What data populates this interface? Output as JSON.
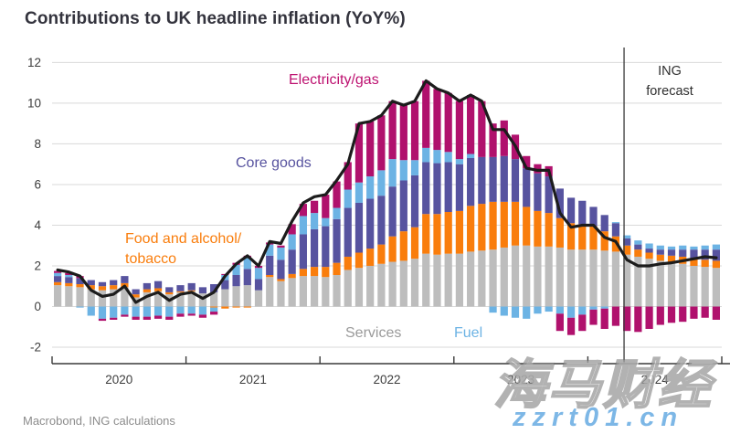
{
  "title": "Contributions to UK headline inflation (YoY%)",
  "source_note": "Macrobond, ING calculations",
  "forecast": {
    "line1": "ING",
    "line2": "forecast"
  },
  "watermark": {
    "text_cjk": "海马财经",
    "text_url": "zzrt01.cn"
  },
  "colors": {
    "services": "#bdbdbd",
    "food_alcohol_tobacco": "#f97d0c",
    "core_goods": "#57539f",
    "fuel": "#6cb3e4",
    "electricity_gas": "#b0116d",
    "headline_line": "#1c1c1c",
    "grid": "#d9d9d9",
    "axis": "#3a3a3a"
  },
  "chart_data": {
    "type": "bar",
    "subtype": "stacked-monthly-bars-with-line",
    "title": "Contributions to UK headline inflation (YoY%)",
    "x_tick_labels": [
      "2020",
      "2021",
      "2022",
      "2023",
      "2024"
    ],
    "months_span": "2020-01 to 2024-12",
    "ylim": [
      -2,
      12
    ],
    "yticks": [
      12,
      10,
      8,
      6,
      4,
      2,
      0,
      -2
    ],
    "grid": true,
    "legend_position": "in-plot annotations",
    "forecast_start_index": 51,
    "series": [
      {
        "name": "Services",
        "color": "#bdbdbd",
        "values": [
          1.05,
          1.0,
          0.95,
          0.85,
          0.8,
          0.85,
          0.95,
          0.45,
          0.7,
          0.75,
          0.6,
          0.7,
          0.75,
          0.65,
          0.7,
          0.85,
          1.0,
          1.05,
          0.8,
          1.45,
          1.25,
          1.4,
          1.5,
          1.5,
          1.45,
          1.55,
          1.8,
          1.9,
          2.0,
          2.1,
          2.2,
          2.25,
          2.35,
          2.6,
          2.55,
          2.6,
          2.6,
          2.7,
          2.75,
          2.8,
          2.9,
          3.0,
          3.0,
          2.95,
          2.95,
          2.9,
          2.8,
          2.8,
          2.8,
          2.75,
          2.7,
          2.55,
          2.45,
          2.35,
          2.25,
          2.2,
          2.1,
          2.0,
          1.95,
          1.9
        ]
      },
      {
        "name": "Food and alcohol/tobacco",
        "color": "#f97d0c",
        "values": [
          0.15,
          0.15,
          0.15,
          0.2,
          0.2,
          0.2,
          0.2,
          0.15,
          0.15,
          0.15,
          0.1,
          0.05,
          0.05,
          0.0,
          -0.05,
          -0.1,
          -0.05,
          -0.05,
          0.0,
          0.1,
          0.1,
          0.2,
          0.35,
          0.45,
          0.5,
          0.6,
          0.65,
          0.75,
          0.85,
          0.95,
          1.25,
          1.45,
          1.55,
          1.95,
          2.0,
          2.05,
          2.1,
          2.25,
          2.3,
          2.35,
          2.25,
          2.15,
          1.9,
          1.75,
          1.65,
          1.45,
          1.3,
          1.25,
          1.15,
          0.95,
          0.75,
          0.45,
          0.35,
          0.3,
          0.3,
          0.3,
          0.35,
          0.35,
          0.35,
          0.35
        ]
      },
      {
        "name": "Core goods",
        "color": "#57539f",
        "values": [
          0.3,
          0.3,
          0.3,
          0.25,
          0.2,
          0.25,
          0.35,
          0.25,
          0.3,
          0.35,
          0.25,
          0.3,
          0.35,
          0.3,
          0.4,
          0.45,
          0.55,
          0.8,
          0.55,
          0.95,
          0.95,
          1.2,
          1.7,
          1.85,
          2.0,
          2.15,
          2.4,
          2.45,
          2.45,
          2.4,
          2.45,
          2.5,
          2.55,
          2.55,
          2.5,
          2.45,
          2.3,
          2.35,
          2.3,
          2.2,
          2.25,
          2.1,
          1.9,
          1.85,
          1.8,
          1.45,
          1.25,
          1.15,
          0.95,
          0.8,
          0.65,
          0.35,
          0.25,
          0.2,
          0.25,
          0.3,
          0.35,
          0.45,
          0.5,
          0.55
        ]
      },
      {
        "name": "Fuel",
        "color": "#6cb3e4",
        "values": [
          0.15,
          0.1,
          -0.05,
          -0.45,
          -0.6,
          -0.55,
          -0.4,
          -0.5,
          -0.5,
          -0.45,
          -0.5,
          -0.35,
          -0.35,
          -0.4,
          -0.2,
          0.25,
          0.5,
          0.55,
          0.55,
          0.55,
          0.6,
          0.75,
          0.9,
          0.8,
          0.4,
          0.55,
          0.9,
          1.0,
          1.1,
          1.25,
          1.35,
          1.0,
          0.75,
          0.7,
          0.65,
          0.5,
          0.25,
          0.2,
          0.0,
          -0.3,
          -0.45,
          -0.55,
          -0.6,
          -0.35,
          -0.25,
          -0.35,
          -0.55,
          -0.4,
          -0.15,
          -0.1,
          0.05,
          0.15,
          0.2,
          0.25,
          0.2,
          0.15,
          0.2,
          0.15,
          0.2,
          0.25
        ]
      },
      {
        "name": "Electricity/gas",
        "color": "#b0116d",
        "values": [
          0.1,
          0.1,
          0.1,
          0.0,
          -0.1,
          -0.1,
          -0.1,
          -0.15,
          -0.15,
          -0.15,
          -0.15,
          -0.15,
          -0.1,
          -0.15,
          -0.15,
          0.05,
          0.1,
          0.1,
          0.1,
          0.1,
          0.1,
          0.5,
          0.6,
          0.6,
          1.15,
          1.3,
          1.35,
          2.9,
          2.7,
          2.7,
          2.85,
          2.7,
          2.9,
          3.3,
          3.0,
          2.9,
          2.85,
          2.9,
          2.75,
          1.65,
          1.75,
          1.2,
          0.6,
          0.45,
          0.5,
          -0.85,
          -0.85,
          -0.8,
          -0.75,
          -1.0,
          -0.95,
          -1.2,
          -1.25,
          -1.1,
          -0.9,
          -0.8,
          -0.75,
          -0.6,
          -0.55,
          -0.65
        ]
      }
    ],
    "line": {
      "name": "Headline inflation (YoY%)",
      "color": "#1c1c1c",
      "values": [
        1.8,
        1.7,
        1.5,
        0.8,
        0.5,
        0.6,
        1.0,
        0.2,
        0.5,
        0.7,
        0.3,
        0.6,
        0.7,
        0.4,
        0.7,
        1.5,
        2.1,
        2.5,
        2.0,
        3.2,
        3.1,
        4.2,
        5.1,
        5.4,
        5.5,
        6.2,
        7.0,
        9.0,
        9.1,
        9.4,
        10.1,
        9.9,
        10.1,
        11.1,
        10.7,
        10.5,
        10.1,
        10.4,
        10.1,
        8.7,
        8.7,
        7.9,
        6.8,
        6.7,
        6.7,
        4.6,
        3.9,
        4.0,
        4.0,
        3.4,
        3.2,
        2.3,
        2.0,
        2.0,
        2.1,
        2.15,
        2.25,
        2.35,
        2.45,
        2.4
      ]
    },
    "annotations": {
      "electricity_gas": "Electricity/gas",
      "core_goods": "Core goods",
      "food_line1": "Food and alcohol/",
      "food_line2": "tobacco",
      "services": "Services",
      "fuel": "Fuel"
    }
  }
}
